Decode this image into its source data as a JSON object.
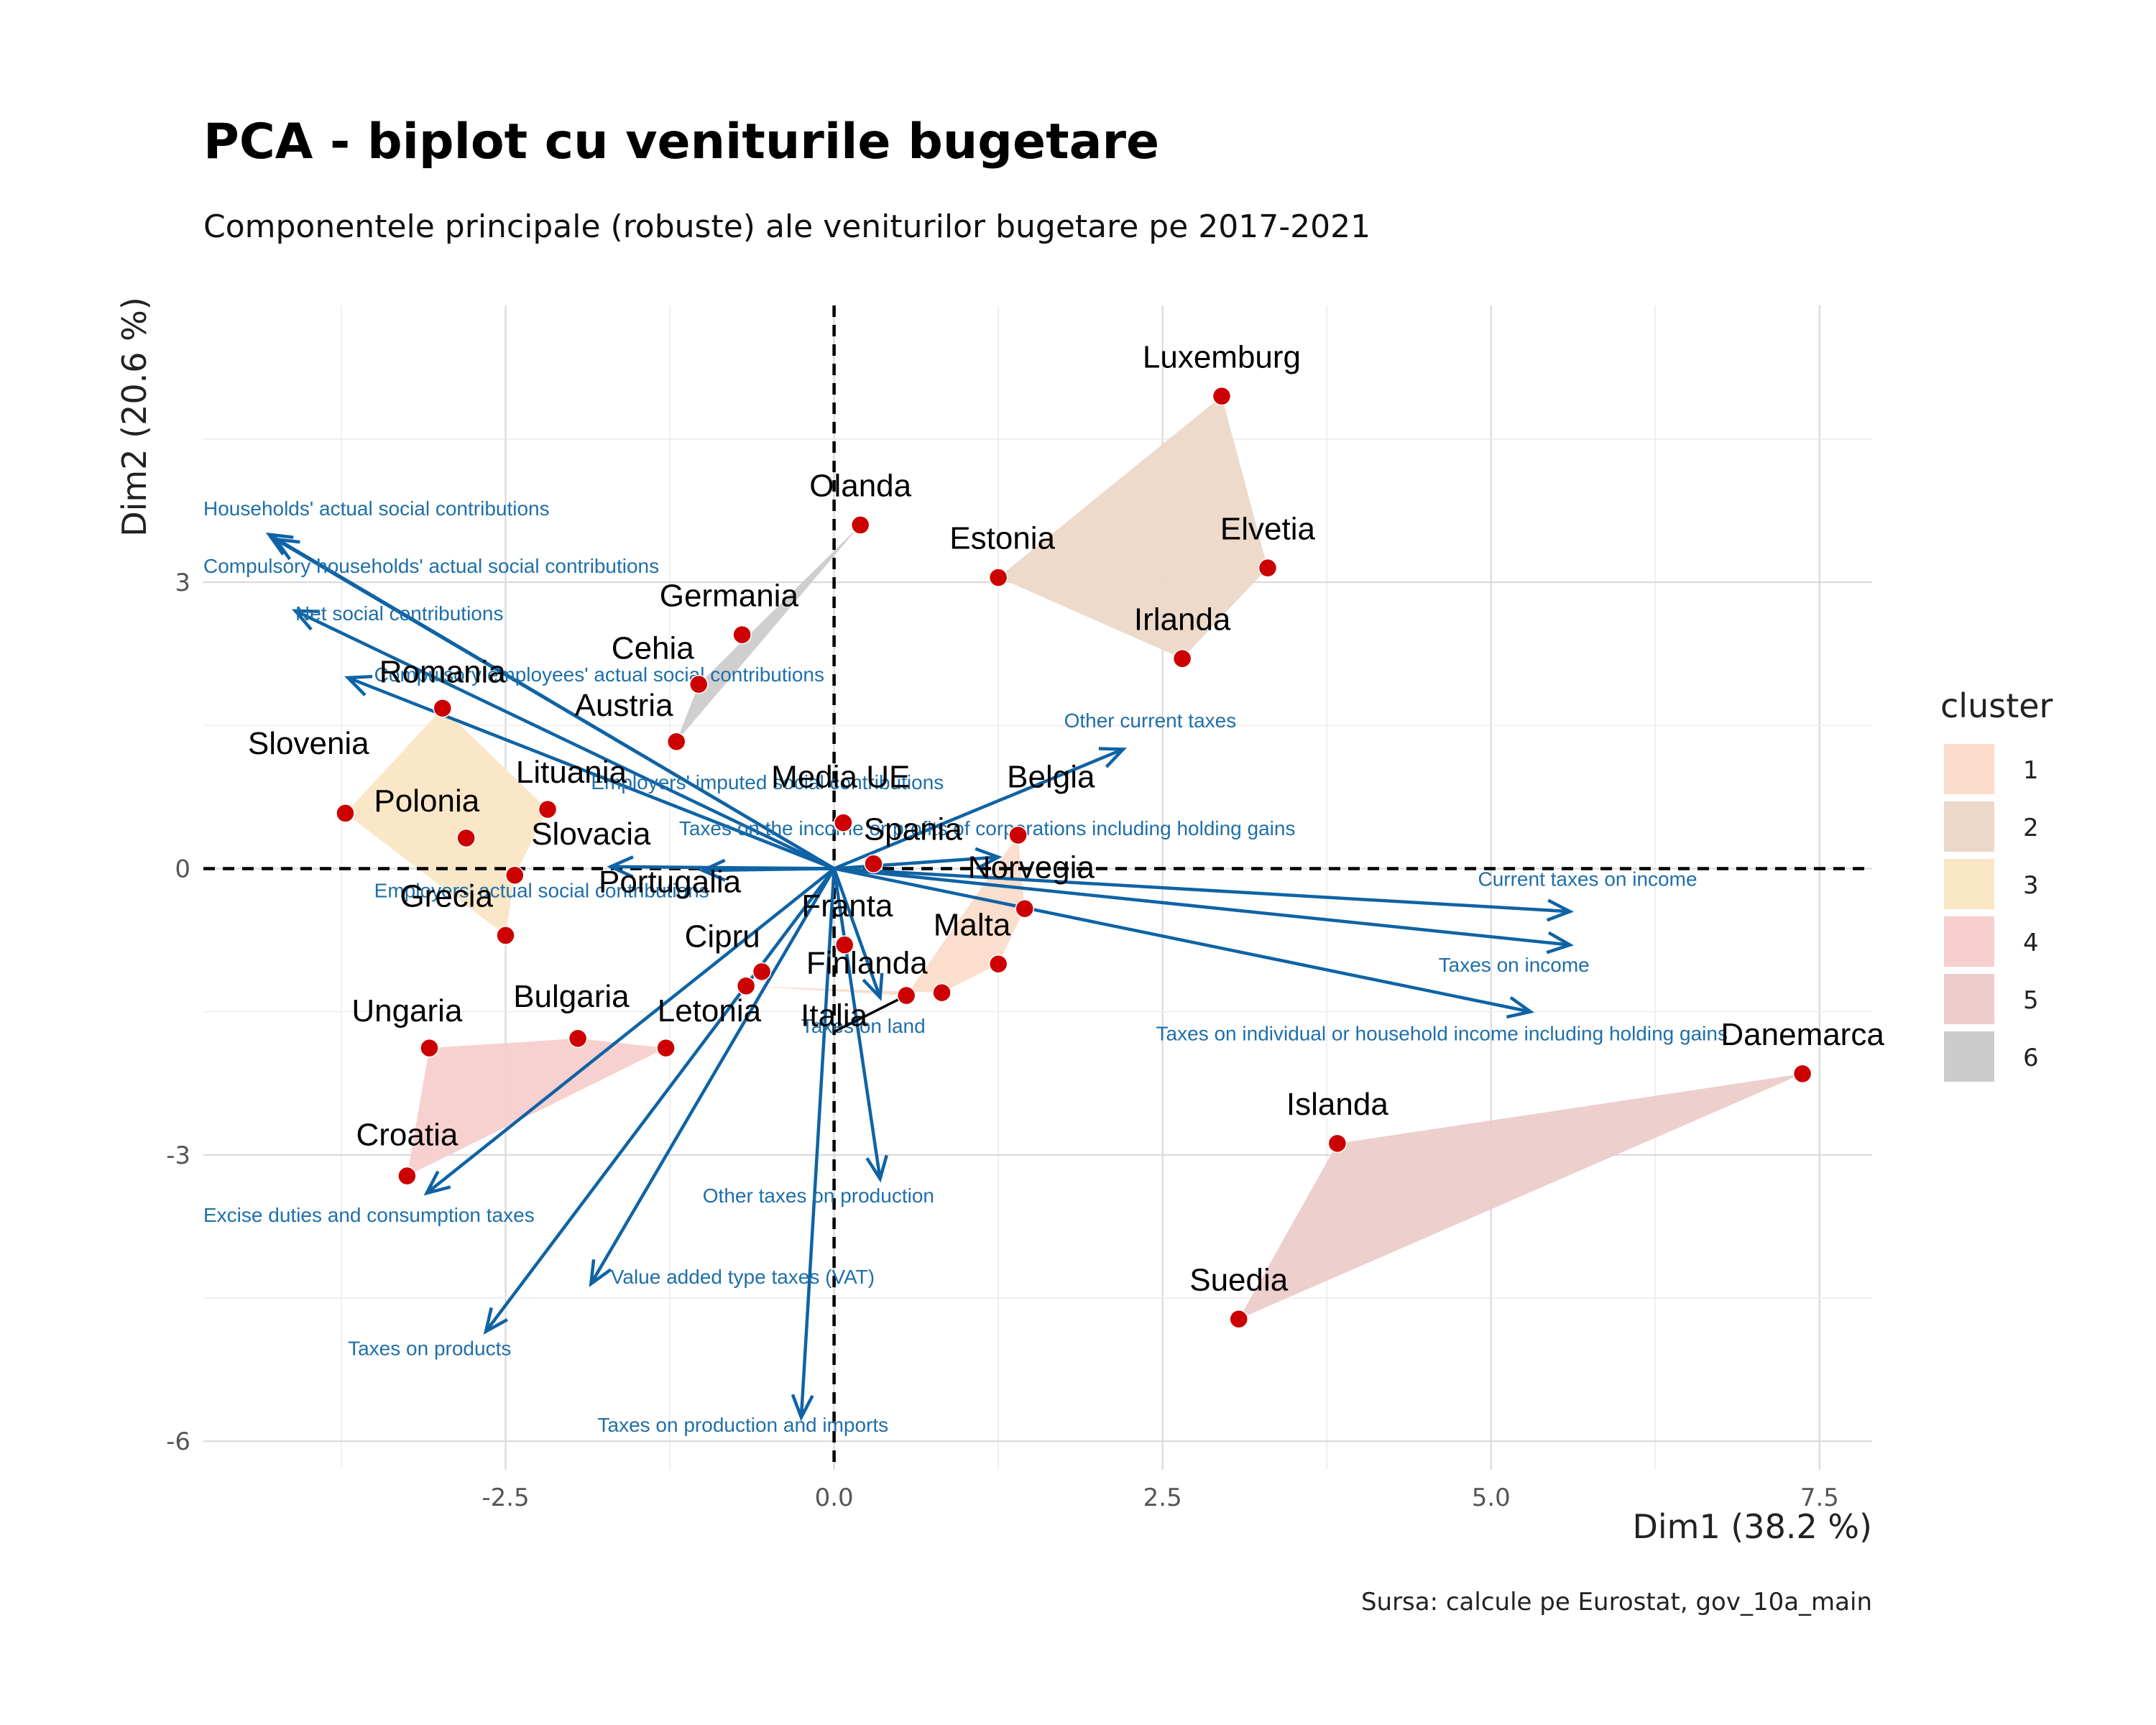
{
  "chart_data": {
    "type": "scatter",
    "title": "PCA - biplot cu veniturile bugetare",
    "subtitle": "Componentele principale (robuste) ale veniturilor bugetare pe 2017-2021",
    "xlabel": "Dim1 (38.2 %)",
    "ylabel": "Dim2 (20.6 %)",
    "caption": "Sursa: calcule pe Eurostat, gov_10a_main",
    "xlim": [
      -4.8,
      7.9
    ],
    "ylim": [
      -6.3,
      5.9
    ],
    "x_ticks": [
      -2.5,
      0.0,
      2.5,
      5.0,
      7.5
    ],
    "x_tick_labels": [
      "-2.5",
      "0.0",
      "2.5",
      "5.0",
      "7.5"
    ],
    "y_ticks": [
      -6,
      -3,
      0,
      3
    ],
    "y_tick_labels": [
      "-6",
      "-3",
      "0",
      "3"
    ],
    "grid": true,
    "legend_position": "right",
    "legend": {
      "title": "cluster",
      "entries": [
        {
          "label": "1",
          "color": "#fbdccb"
        },
        {
          "label": "2",
          "color": "#ecd8c8"
        },
        {
          "label": "3",
          "color": "#f9e6c4"
        },
        {
          "label": "4",
          "color": "#f7cfce"
        },
        {
          "label": "5",
          "color": "#ecccca"
        },
        {
          "label": "6",
          "color": "#cccccc"
        }
      ]
    },
    "clusters": [
      {
        "name": "1",
        "color": "#fbdccb",
        "hull": [
          "Belgia",
          "Norvegia",
          "Malta",
          "Finlanda",
          "Cipru",
          "Italia"
        ]
      },
      {
        "name": "2",
        "color": "#ecd8c8",
        "hull": [
          "Luxemburg",
          "Elvetia",
          "Irlanda",
          "Estonia"
        ]
      },
      {
        "name": "3",
        "color": "#f9e6c4",
        "hull": [
          "Romania",
          "Lituania",
          "Slovacia",
          "Grecia",
          "Slovenia"
        ]
      },
      {
        "name": "4",
        "color": "#f7cfce",
        "hull": [
          "Ungaria",
          "Bulgaria",
          "Letonia",
          "Croatia"
        ]
      },
      {
        "name": "5",
        "color": "#ecccca",
        "hull": [
          "Danemarca",
          "Suedia",
          "Islanda"
        ]
      },
      {
        "name": "6",
        "color": "#cccccc",
        "hull": [
          "Olanda",
          "Austria",
          "Cehia"
        ]
      }
    ],
    "points": [
      {
        "name": "Luxemburg",
        "x": 2.95,
        "y": 4.95,
        "lx": 2.95,
        "ly": 5.25
      },
      {
        "name": "Olanda",
        "x": 0.2,
        "y": 3.6,
        "lx": 0.2,
        "ly": 3.9
      },
      {
        "name": "Estonia",
        "x": 1.25,
        "y": 3.05,
        "lx": 1.28,
        "ly": 3.35
      },
      {
        "name": "Elvetia",
        "x": 3.3,
        "y": 3.15,
        "lx": 3.3,
        "ly": 3.45
      },
      {
        "name": "Irlanda",
        "x": 2.65,
        "y": 2.2,
        "lx": 2.65,
        "ly": 2.5
      },
      {
        "name": "Germania",
        "x": -0.7,
        "y": 2.45,
        "lx": -0.8,
        "ly": 2.75
      },
      {
        "name": "Cehia",
        "x": -1.03,
        "y": 1.93,
        "lx": -1.38,
        "ly": 2.2
      },
      {
        "name": "Romania",
        "x": -2.98,
        "y": 1.68,
        "lx": -2.98,
        "ly": 1.95
      },
      {
        "name": "Austria",
        "x": -1.2,
        "y": 1.33,
        "lx": -1.6,
        "ly": 1.6
      },
      {
        "name": "Slovenia",
        "x": -3.72,
        "y": 0.58,
        "lx": -4.0,
        "ly": 1.2
      },
      {
        "name": "Lituania",
        "x": -2.18,
        "y": 0.62,
        "lx": -2.0,
        "ly": 0.9
      },
      {
        "name": "Polonia",
        "x": -2.8,
        "y": 0.32,
        "lx": -3.1,
        "ly": 0.6
      },
      {
        "name": "Media UE",
        "x": 0.07,
        "y": 0.48,
        "lx": 0.05,
        "ly": 0.85
      },
      {
        "name": "Belgia",
        "x": 1.4,
        "y": 0.35,
        "lx": 1.65,
        "ly": 0.85
      },
      {
        "name": "Spania",
        "x": 0.3,
        "y": 0.05,
        "lx": 0.6,
        "ly": 0.3
      },
      {
        "name": "Slovacia",
        "x": -2.43,
        "y": -0.07,
        "lx": -1.85,
        "ly": 0.25
      },
      {
        "name": "Norvegia",
        "x": 1.45,
        "y": -0.42,
        "lx": 1.5,
        "ly": -0.1
      },
      {
        "name": "Portugalia",
        "x": -0.55,
        "y": -1.08,
        "lx": -1.25,
        "ly": -0.25
      },
      {
        "name": "Grecia",
        "x": -2.5,
        "y": -0.7,
        "lx": -2.95,
        "ly": -0.4
      },
      {
        "name": "Franta",
        "x": 0.08,
        "y": -0.8,
        "lx": 0.1,
        "ly": -0.5
      },
      {
        "name": "Malta",
        "x": 1.25,
        "y": -1.0,
        "lx": 1.05,
        "ly": -0.7
      },
      {
        "name": "Cipru",
        "x": -0.67,
        "y": -1.23,
        "lx": -0.85,
        "ly": -0.82
      },
      {
        "name": "Finlanda",
        "x": 0.82,
        "y": -1.3,
        "lx": 0.25,
        "ly": -1.1
      },
      {
        "name": "Italia",
        "x": 0.55,
        "y": -1.33,
        "lx": 0.0,
        "ly": -1.65
      },
      {
        "name": "Ungaria",
        "x": -3.08,
        "y": -1.88,
        "lx": -3.25,
        "ly": -1.6
      },
      {
        "name": "Bulgaria",
        "x": -1.95,
        "y": -1.78,
        "lx": -2.0,
        "ly": -1.45
      },
      {
        "name": "Letonia",
        "x": -1.28,
        "y": -1.88,
        "lx": -0.95,
        "ly": -1.6
      },
      {
        "name": "Croatia",
        "x": -3.25,
        "y": -3.22,
        "lx": -3.25,
        "ly": -2.9
      },
      {
        "name": "Islanda",
        "x": 3.83,
        "y": -2.88,
        "lx": 3.83,
        "ly": -2.58
      },
      {
        "name": "Danemarca",
        "x": 7.37,
        "y": -2.15,
        "lx": 7.37,
        "ly": -1.85
      },
      {
        "name": "Suedia",
        "x": 3.08,
        "y": -4.72,
        "lx": 3.08,
        "ly": -4.42
      }
    ],
    "variables": [
      {
        "name": "Households' actual social contributions",
        "x": -4.3,
        "y": 3.5,
        "lx": -4.8,
        "ly": 3.7
      },
      {
        "name": "Compulsory households' actual social contributions",
        "x": -4.25,
        "y": 3.45,
        "lx": -4.8,
        "ly": 3.1
      },
      {
        "name": "Net social contributions",
        "x": -4.1,
        "y": 2.7,
        "lx": -4.1,
        "ly": 2.6
      },
      {
        "name": "Compulsory employees' actual social contributions",
        "x": -3.7,
        "y": 2.0,
        "lx": -3.5,
        "ly": 1.96
      },
      {
        "name": "Employers' imputed social contributions",
        "x": -1.7,
        "y": 0.02,
        "lx": -1.85,
        "ly": 0.83
      },
      {
        "name": "Taxes on the income or profits of corporations including holding gains",
        "x": 1.25,
        "y": 0.12,
        "lx": -1.18,
        "ly": 0.35
      },
      {
        "name": "Employers' actual social contributions",
        "x": -1.0,
        "y": -0.02,
        "lx": -3.5,
        "ly": -0.3
      },
      {
        "name": "Other current taxes",
        "x": 2.2,
        "y": 1.25,
        "lx": 1.75,
        "ly": 1.48
      },
      {
        "name": "Current taxes on income",
        "x": 5.6,
        "y": -0.45,
        "lx": 4.9,
        "ly": -0.18
      },
      {
        "name": "Taxes on income",
        "x": 5.6,
        "y": -0.8,
        "lx": 4.6,
        "ly": -1.08
      },
      {
        "name": "Taxes on individual or household income including holding gains",
        "x": 5.3,
        "y": -1.5,
        "lx": 2.45,
        "ly": -1.8
      },
      {
        "name": "Taxes on land",
        "x": 0.35,
        "y": -1.35,
        "lx": -0.25,
        "ly": -1.72
      },
      {
        "name": "Other taxes on production",
        "x": 0.35,
        "y": -3.25,
        "lx": -1.0,
        "ly": -3.5
      },
      {
        "name": "Excise duties and consumption taxes",
        "x": -3.1,
        "y": -3.4,
        "lx": -4.8,
        "ly": -3.7
      },
      {
        "name": "Value added type taxes (VAT)",
        "x": -1.85,
        "y": -4.35,
        "lx": -1.7,
        "ly": -4.35
      },
      {
        "name": "Taxes on products",
        "x": -2.65,
        "y": -4.85,
        "lx": -3.7,
        "ly": -5.1
      },
      {
        "name": "Taxes on production and imports",
        "x": -0.25,
        "y": -5.75,
        "lx": -1.8,
        "ly": -5.9
      }
    ],
    "point_color": "#cc0000",
    "arrow_color": "#0e63a5"
  }
}
